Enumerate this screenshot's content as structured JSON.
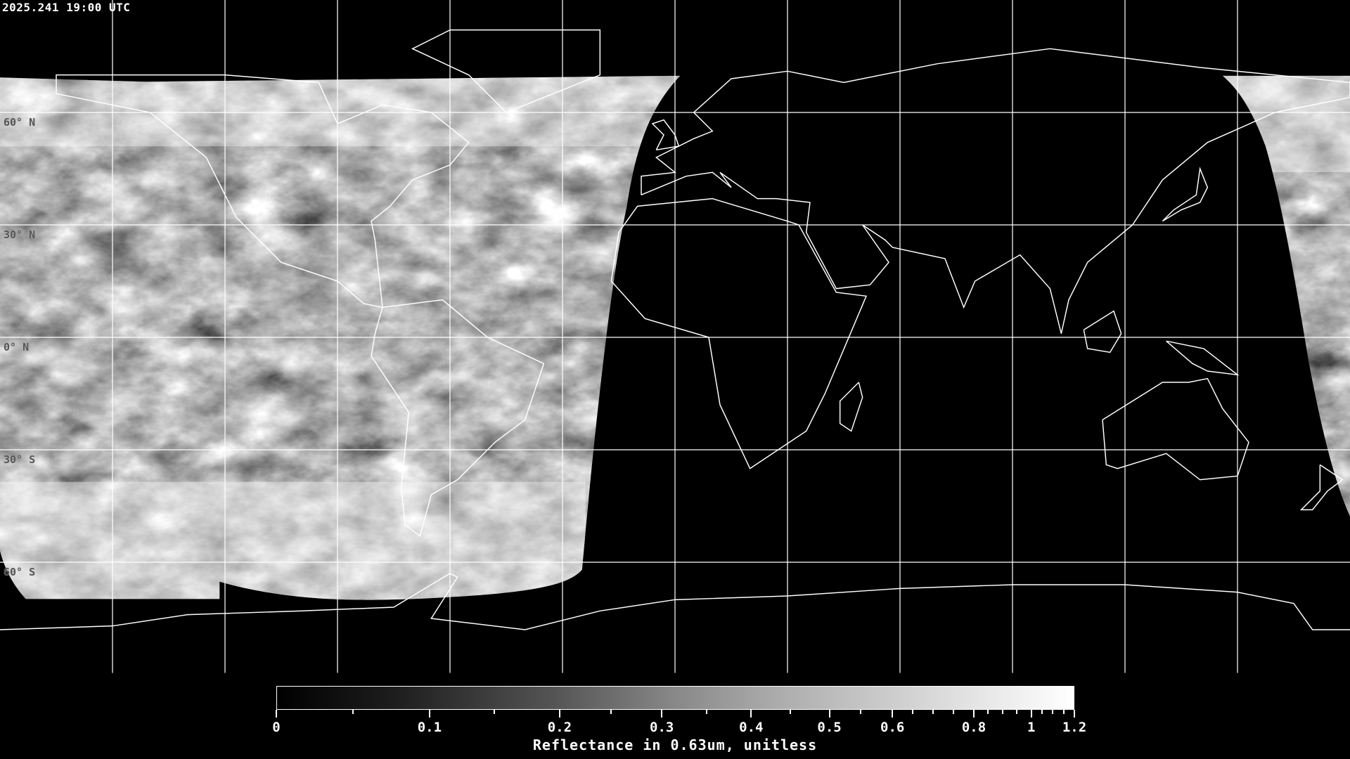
{
  "header": {
    "timestamp": "2025.241 19:00 UTC"
  },
  "map": {
    "projection": "equirectangular",
    "lon_range": [
      -180,
      180
    ],
    "lat_range": [
      -90,
      90
    ],
    "graticule_spacing_deg": 30,
    "coastline_color": "#ffffff",
    "grid_color": "#ffffff",
    "background_color": "#000000",
    "lat_labels": [
      "60° N",
      "30° N",
      "0° N",
      "30° S",
      "60° S"
    ]
  },
  "colorbar": {
    "title": "Reflectance in 0.63um, unitless",
    "colormap": "grayscale",
    "min": 0,
    "max": 1.2,
    "tick_labels": [
      "0",
      "0.1",
      "0.2",
      "0.3",
      "0.4",
      "0.5",
      "0.6",
      "0.8",
      "1",
      "1.2"
    ]
  }
}
